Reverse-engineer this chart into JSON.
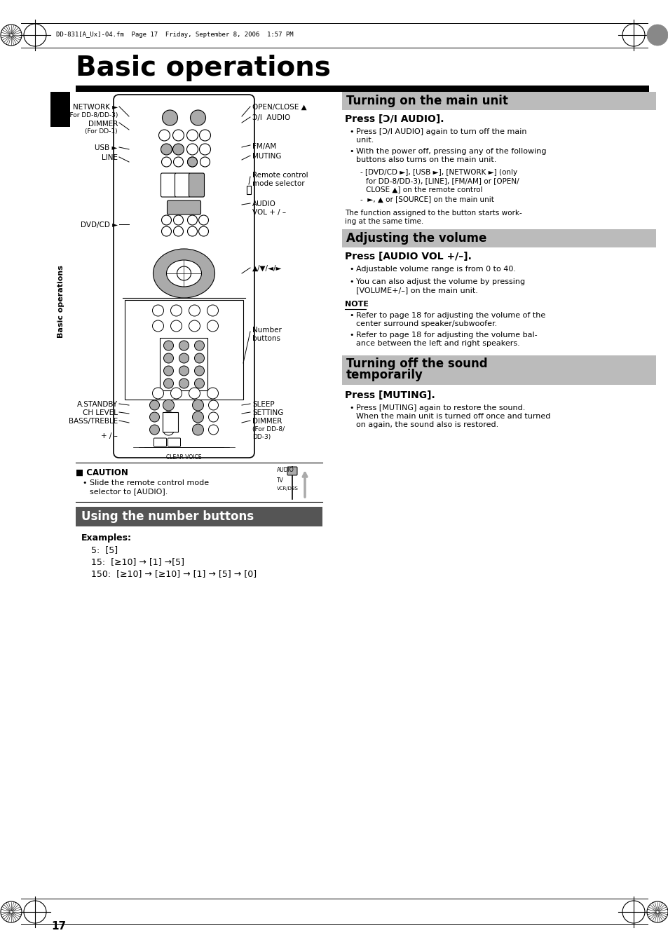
{
  "page_title": "Basic operations",
  "header_text": "DD-831[A_Ux]-04.fm  Page 17  Friday, September 8, 2006  1:57 PM",
  "page_number": "17",
  "sidebar_text": "Basic operations",
  "section1_header": "Turning on the main unit",
  "section1_subhead": "Press [Ɔ/I AUDIO].",
  "section2_header": "Adjusting the volume",
  "section2_subhead": "Press [AUDIO VOL +/–].",
  "note_header": "NOTE",
  "section3_header_line1": "Turning off the sound",
  "section3_header_line2": "temporarily",
  "section3_subhead": "Press [MUTING].",
  "using_header": "Using the number buttons",
  "using_examples_title": "Examples:",
  "using_ex1": "5:  [5]",
  "using_ex2": "15:  [≥10] → [1] →[5]",
  "using_ex3": "150:  [≥10] → [≥10] → [1] → [5] → [0]",
  "caution_header": "■ CAUTION",
  "caution_bullet": "Slide the remote control mode",
  "caution_bullet2": "selector to [AUDIO].",
  "bg_color": "#ffffff",
  "section_header_bg": "#bbbbbb",
  "using_header_bg": "#555555",
  "black": "#000000",
  "gray_btn": "#aaaaaa",
  "light_gray": "#cccccc"
}
